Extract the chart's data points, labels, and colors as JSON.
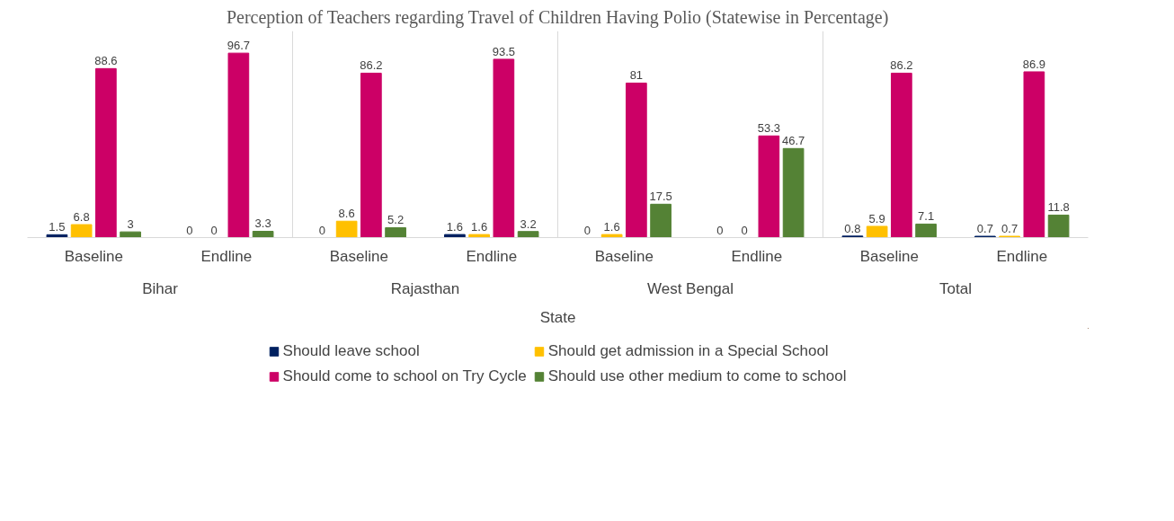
{
  "chart_data": {
    "type": "bar",
    "title": "Perception of Teachers regarding Travel of Children Having Polio (Statewise in Percentage)",
    "xlabel": "State",
    "categories": [
      "Baseline",
      "Endline",
      "Baseline",
      "Endline",
      "Baseline",
      "Endline",
      "Baseline",
      "Endline"
    ],
    "annotations": [
      "Bihar",
      "Rajasthan",
      "West Bengal",
      "Total"
    ],
    "series": [
      {
        "name": "Should leave school",
        "color": "#002060",
        "values": [
          1.5,
          0,
          0,
          1.6,
          0,
          0,
          0.8,
          0.7
        ]
      },
      {
        "name": "Should get admission in a Special School",
        "color": "#ffc000",
        "values": [
          6.8,
          0,
          8.6,
          1.6,
          1.6,
          0,
          5.9,
          0.7
        ]
      },
      {
        "name": "Should come to school on Try Cycle",
        "color": "#cc0066",
        "values": [
          88.6,
          96.7,
          86.2,
          93.5,
          81,
          53.3,
          86.2,
          86.9
        ]
      },
      {
        "name": "Should use other medium to come to school",
        "color": "#548235",
        "values": [
          3,
          3.3,
          5.2,
          3.2,
          17.5,
          46.7,
          7.1,
          11.8
        ]
      }
    ],
    "data_labels": true,
    "legend": "bottom",
    "grid": false
  }
}
